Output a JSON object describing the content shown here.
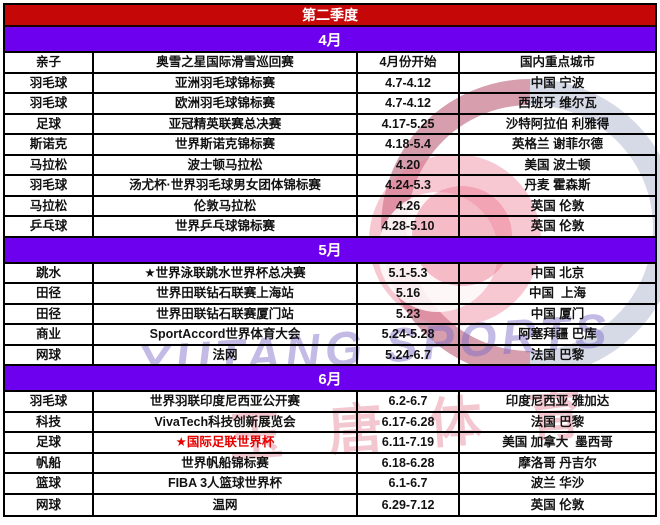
{
  "title": "第二季度",
  "colors": {
    "title_bg": "#c50707",
    "month_bg": "#6e00f0",
    "highlight_text": "#e60000"
  },
  "watermark": {
    "english": "YUTANG SPORTS",
    "chinese": "玉唐体育"
  },
  "sections": [
    {
      "month": "4月",
      "rows": [
        {
          "sport": "亲子",
          "event": "奥雪之星国际滑雪巡回赛",
          "date": "4月份开始",
          "location": "国内重点城市"
        },
        {
          "sport": "羽毛球",
          "event": "亚洲羽毛球锦标赛",
          "date": "4.7-4.12",
          "location": "中国 宁波"
        },
        {
          "sport": "羽毛球",
          "event": "欧洲羽毛球锦标赛",
          "date": "4.7-4.12",
          "location": "西班牙 维尔瓦"
        },
        {
          "sport": "足球",
          "event": "亚冠精英联赛总决赛",
          "date": "4.17-5.25",
          "location": "沙特阿拉伯 利雅得"
        },
        {
          "sport": "斯诺克",
          "event": "世界斯诺克锦标赛",
          "date": "4.18-5.4",
          "location": "英格兰 谢菲尔德"
        },
        {
          "sport": "马拉松",
          "event": "波士顿马拉松",
          "date": "4.20",
          "location": "美国 波士顿"
        },
        {
          "sport": "羽毛球",
          "event": "汤尤杯·世界羽毛球男女团体锦标赛",
          "date": "4.24-5.3",
          "location": "丹麦 霍森斯"
        },
        {
          "sport": "马拉松",
          "event": "伦敦马拉松",
          "date": "4.26",
          "location": "英国 伦敦"
        },
        {
          "sport": "乒乓球",
          "event": "世界乒乓球锦标赛",
          "date": "4.28-5.10",
          "location": "英国 伦敦"
        }
      ]
    },
    {
      "month": "5月",
      "rows": [
        {
          "sport": "跳水",
          "event": "★世界泳联跳水世界杯总决赛",
          "date": "5.1-5.3",
          "location": "中国 北京"
        },
        {
          "sport": "田径",
          "event": "世界田联钻石联赛上海站",
          "date": "5.16",
          "location": "中国  上海"
        },
        {
          "sport": "田径",
          "event": "世界田联钻石联赛厦门站",
          "date": "5.23",
          "location": "中国 厦门"
        },
        {
          "sport": "商业",
          "event": "SportAccord世界体育大会",
          "date": "5.24-5.28",
          "location": "阿塞拜疆 巴库"
        },
        {
          "sport": "网球",
          "event": "法网",
          "date": "5.24-6.7",
          "location": "法国 巴黎"
        }
      ]
    },
    {
      "month": "6月",
      "rows": [
        {
          "sport": "羽毛球",
          "event": "世界羽联印度尼西亚公开赛",
          "date": "6.2-6.7",
          "location": "印度尼西亚 雅加达"
        },
        {
          "sport": "科技",
          "event": "VivaTech科技创新展览会",
          "date": "6.17-6.28",
          "location": "法国 巴黎"
        },
        {
          "sport": "足球",
          "event": "★国际足联世界杯",
          "date": "6.11-7.19",
          "location": "美国 加拿大  墨西哥",
          "event_color": "#e60000"
        },
        {
          "sport": "帆船",
          "event": "世界帆船锦标赛",
          "date": "6.18-6.28",
          "location": "摩洛哥 丹吉尔"
        },
        {
          "sport": "篮球",
          "event": "FIBA 3人篮球世界杯",
          "date": "6.1-6.7",
          "location": "波兰 华沙"
        },
        {
          "sport": "网球",
          "event": "温网",
          "date": "6.29-7.12",
          "location": "英国 伦敦"
        }
      ]
    }
  ]
}
